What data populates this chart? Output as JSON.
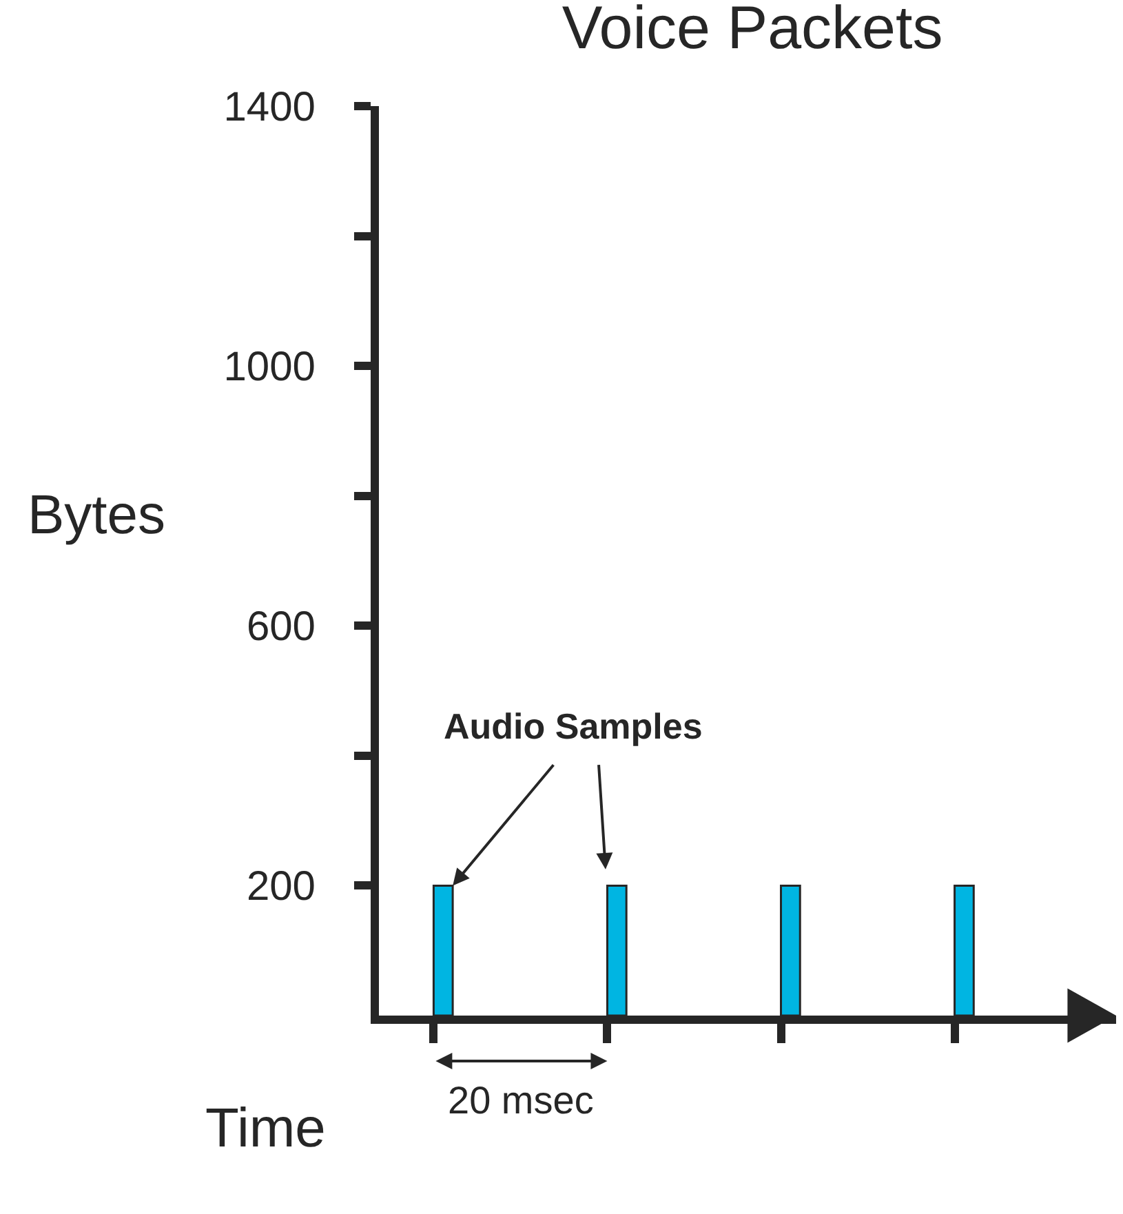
{
  "chart_data": {
    "type": "bar",
    "title": "Voice Packets",
    "xlabel": "Time",
    "ylabel": "Bytes",
    "categories": [
      null,
      null,
      null,
      null
    ],
    "values": [
      200,
      200,
      200,
      200
    ],
    "color": "#00b5e2",
    "ylim": [
      0,
      1400
    ],
    "yticks": [
      200,
      {
        "value": 400,
        "label": null
      },
      600,
      {
        "value": 800,
        "label": null
      },
      1000,
      {
        "value": 1200,
        "label": null
      },
      1400
    ],
    "annotations": [
      "Audio Samples",
      "20 msec"
    ],
    "tick_labels": "y"
  }
}
